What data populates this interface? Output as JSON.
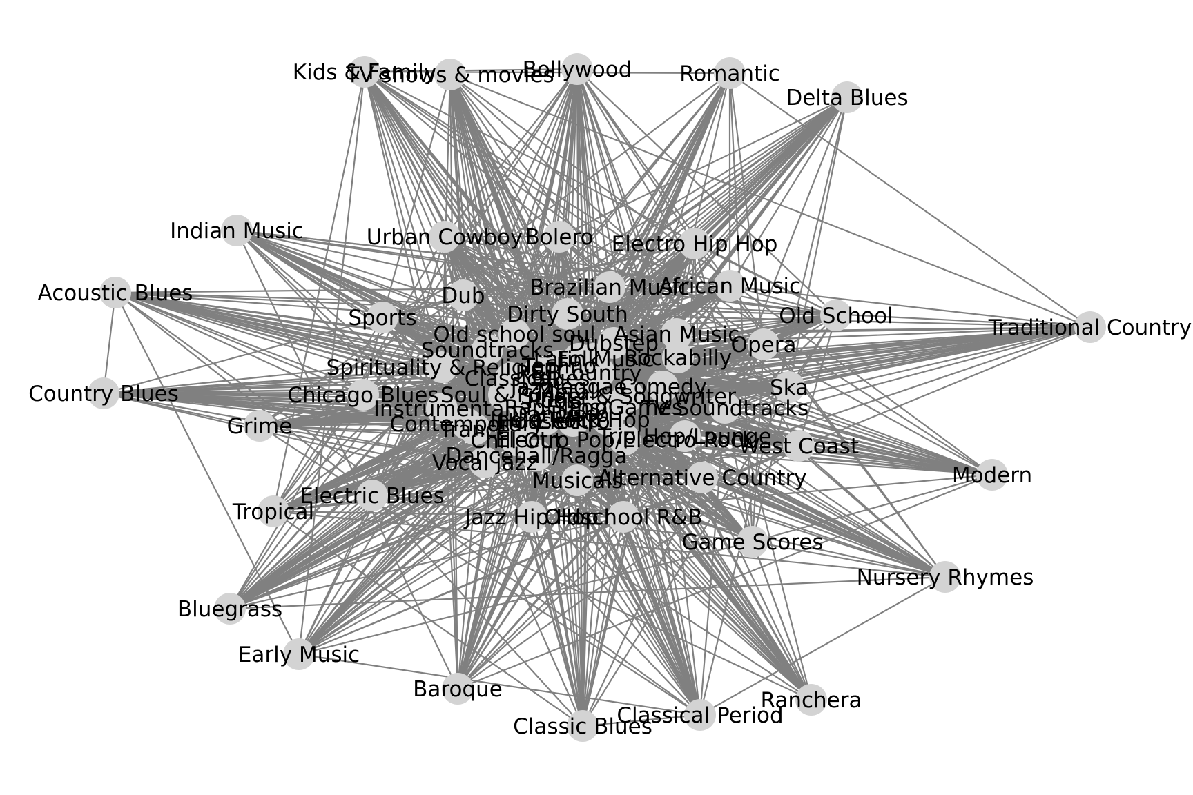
{
  "graph": {
    "edge_color": "#808080",
    "node_color": "#d3d3d3",
    "label_color": "#000000",
    "nodes": [
      "Kids & Family",
      "TV shows & movies",
      "Bollywood",
      "Romantic",
      "Delta Blues",
      "Indian Music",
      "Urban Cowboy",
      "Bolero",
      "Electro Hip Hop",
      "Acoustic Blues",
      "Dub",
      "Brazilian Music",
      "African Music",
      "Sports",
      "Dirty South",
      "Old School",
      "Traditional Country",
      "Old school soul",
      "Asian Music",
      "Dubstep",
      "Opera",
      "Soundtracks",
      "Rockabilly",
      "Spirituality & Religion",
      "Country Blues",
      "Ska",
      "Chicago Blues",
      "Comedy",
      "Instrumental",
      "TV Soundtracks",
      "Grime",
      "Contemporary",
      "Indie Rock",
      "Trance",
      "Chill Out",
      "Trip Hop/Lounge",
      "Electro Pop/Electro Rock",
      "West Coast",
      "Dancehall/Ragga",
      "Vocal jazz",
      "Modern",
      "Musicals",
      "Alternative Country",
      "Electric Blues",
      "Tropical",
      "Jazz Hip Hop",
      "Oldschool R&B",
      "Game Scores",
      "Nursery Rhymes",
      "Bluegrass",
      "Early Music",
      "Baroque",
      "Ranchera",
      "Classical Period",
      "Classic Blues",
      "Singer & Songwriter",
      "Soul & Funk",
      "Folk",
      "Rock",
      "Pop",
      "Jazz",
      "Blues",
      "Country",
      "Dance",
      "Electro",
      "Hip Hop",
      "Rap",
      "Metal",
      "Reggae",
      "R&B",
      "Latin Music",
      "Classical",
      "Films/Games",
      "Techno",
      "House",
      "Disco"
    ],
    "cluster_nodes": [
      "Singer & Songwriter",
      "Soul & Funk",
      "Folk",
      "Rock",
      "Pop",
      "Jazz",
      "Blues",
      "Country",
      "Dance",
      "Electro",
      "Hip Hop",
      "Rap",
      "Metal",
      "Reggae",
      "R&B",
      "Latin Music",
      "Classical",
      "Films/Games",
      "Techno",
      "House",
      "Disco"
    ]
  }
}
